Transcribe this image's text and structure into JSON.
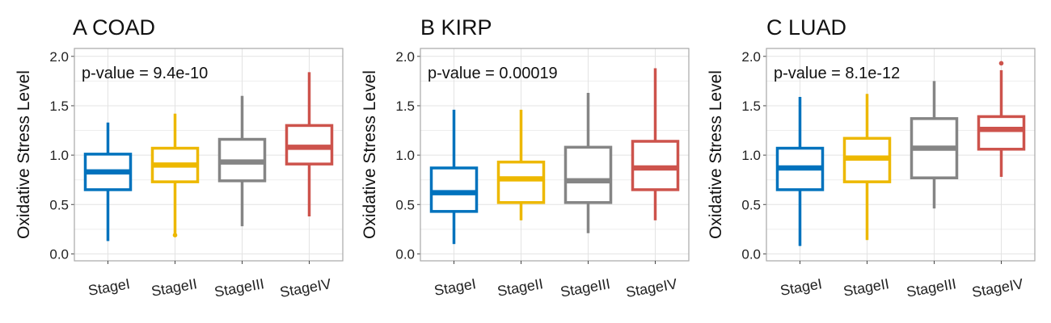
{
  "colors": {
    "StageI": "#0072BD",
    "StageII": "#EDB800",
    "StageIII": "#858585",
    "StageIV": "#CD534C",
    "grid": "#e3e3e3",
    "border": "#a8a8a8"
  },
  "chart_data": [
    {
      "type": "boxplot",
      "title": "A  COAD",
      "ylabel": "Oxidative Stress Level",
      "annotation": "p-value = 9.4e-10",
      "ylim": [
        -0.07,
        2.08
      ],
      "yticks": [
        "0.0",
        "0.5",
        "1.0",
        "1.5",
        "2.0"
      ],
      "categories": [
        "StageI",
        "StageII",
        "StageIII",
        "StageIV"
      ],
      "boxes": [
        {
          "min": 0.13,
          "q1": 0.65,
          "median": 0.83,
          "q3": 1.01,
          "max": 1.33,
          "outliers": []
        },
        {
          "min": 0.2,
          "q1": 0.73,
          "median": 0.9,
          "q3": 1.07,
          "max": 1.42,
          "outliers": [
            0.19
          ]
        },
        {
          "min": 0.28,
          "q1": 0.74,
          "median": 0.93,
          "q3": 1.16,
          "max": 1.6,
          "outliers": []
        },
        {
          "min": 0.38,
          "q1": 0.91,
          "median": 1.08,
          "q3": 1.3,
          "max": 1.84,
          "outliers": []
        }
      ]
    },
    {
      "type": "boxplot",
      "title": "B  KIRP",
      "ylabel": "Oxidative Stress Level",
      "annotation": "p-value = 0.00019",
      "ylim": [
        -0.07,
        2.08
      ],
      "yticks": [
        "0.0",
        "0.5",
        "1.0",
        "1.5",
        "2.0"
      ],
      "categories": [
        "StageI",
        "StageII",
        "StageIII",
        "StageIV"
      ],
      "boxes": [
        {
          "min": 0.1,
          "q1": 0.43,
          "median": 0.62,
          "q3": 0.87,
          "max": 1.46,
          "outliers": []
        },
        {
          "min": 0.34,
          "q1": 0.52,
          "median": 0.76,
          "q3": 0.93,
          "max": 1.46,
          "outliers": []
        },
        {
          "min": 0.21,
          "q1": 0.52,
          "median": 0.74,
          "q3": 1.08,
          "max": 1.63,
          "outliers": []
        },
        {
          "min": 0.34,
          "q1": 0.65,
          "median": 0.87,
          "q3": 1.14,
          "max": 1.88,
          "outliers": []
        }
      ]
    },
    {
      "type": "boxplot",
      "title": "C  LUAD",
      "ylabel": "Oxidative Stress Level",
      "annotation": "p-value = 8.1e-12",
      "ylim": [
        -0.07,
        2.08
      ],
      "yticks": [
        "0.0",
        "0.5",
        "1.0",
        "1.5",
        "2.0"
      ],
      "categories": [
        "StageI",
        "StageII",
        "StageIII",
        "StageIV"
      ],
      "boxes": [
        {
          "min": 0.08,
          "q1": 0.65,
          "median": 0.87,
          "q3": 1.07,
          "max": 1.59,
          "outliers": []
        },
        {
          "min": 0.14,
          "q1": 0.73,
          "median": 0.97,
          "q3": 1.17,
          "max": 1.62,
          "outliers": []
        },
        {
          "min": 0.46,
          "q1": 0.77,
          "median": 1.07,
          "q3": 1.37,
          "max": 1.75,
          "outliers": []
        },
        {
          "min": 0.78,
          "q1": 1.06,
          "median": 1.26,
          "q3": 1.39,
          "max": 1.86,
          "outliers": [
            1.93
          ]
        }
      ]
    }
  ]
}
